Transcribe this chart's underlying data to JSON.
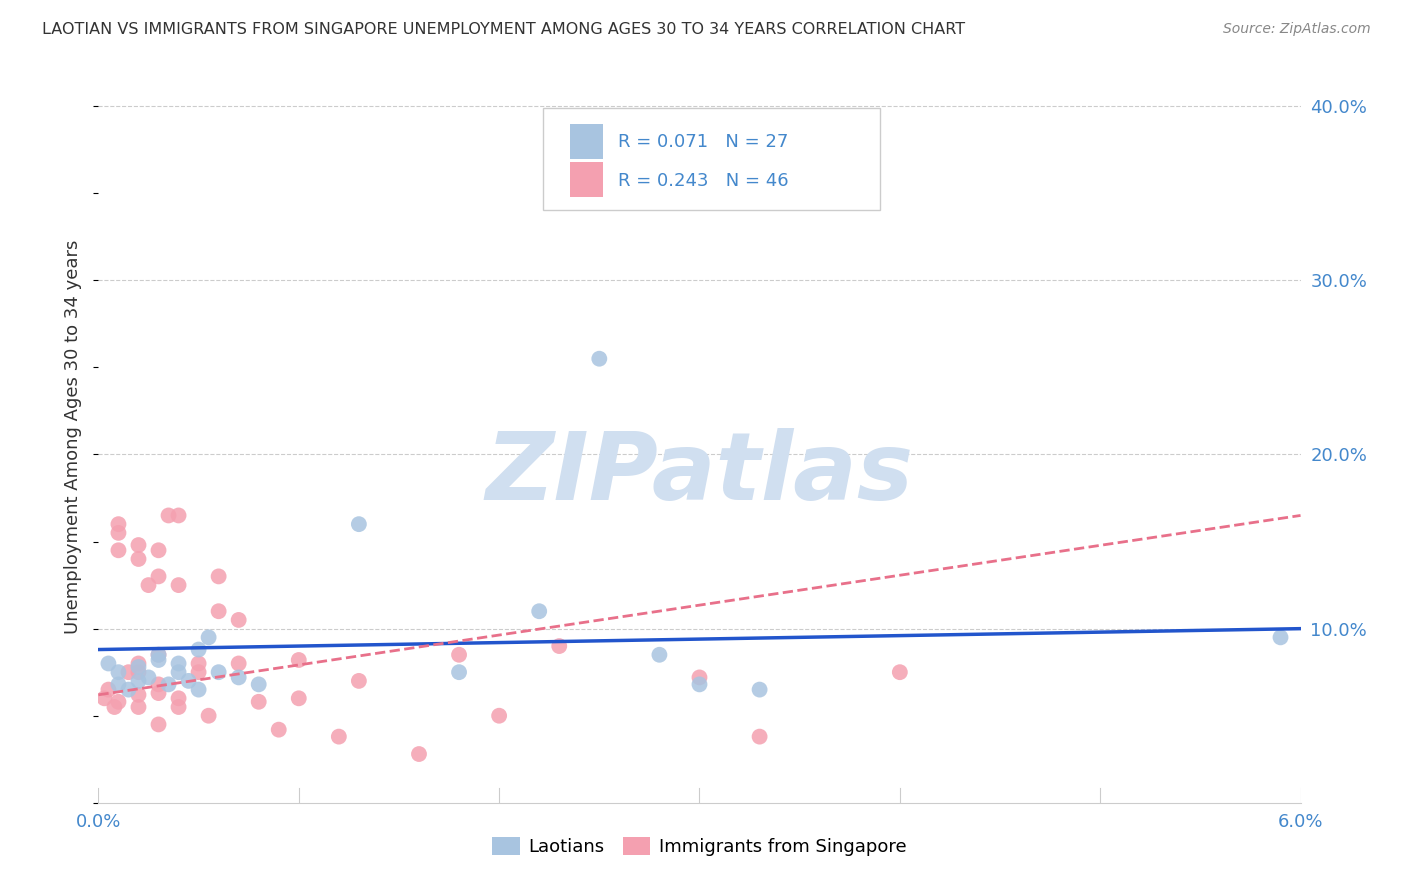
{
  "title": "LAOTIAN VS IMMIGRANTS FROM SINGAPORE UNEMPLOYMENT AMONG AGES 30 TO 34 YEARS CORRELATION CHART",
  "source": "Source: ZipAtlas.com",
  "ylabel": "Unemployment Among Ages 30 to 34 years",
  "xlim": [
    0.0,
    0.06
  ],
  "ylim": [
    0.0,
    0.42
  ],
  "xticks": [
    0.0,
    0.01,
    0.02,
    0.03,
    0.04,
    0.05,
    0.06
  ],
  "xticklabels_show": [
    "0.0%",
    "6.0%"
  ],
  "yticks_right": [
    0.0,
    0.1,
    0.2,
    0.3,
    0.4
  ],
  "ytick_labels_right": [
    "",
    "10.0%",
    "20.0%",
    "30.0%",
    "40.0%"
  ],
  "laotians_color": "#a8c4e0",
  "singapore_color": "#f4a0b0",
  "trendline_laotians_color": "#2255cc",
  "trendline_singapore_color": "#e8708a",
  "background_color": "#ffffff",
  "watermark_text": "ZIPatlas",
  "watermark_color": "#d0dff0",
  "legend_text_color": "#4488cc",
  "legend_line1": "R = 0.071   N = 27",
  "legend_line2": "R = 0.243   N = 46",
  "laotians_x": [
    0.0005,
    0.001,
    0.001,
    0.0015,
    0.002,
    0.002,
    0.0025,
    0.003,
    0.003,
    0.0035,
    0.004,
    0.004,
    0.0045,
    0.005,
    0.005,
    0.0055,
    0.006,
    0.007,
    0.008,
    0.013,
    0.018,
    0.022,
    0.025,
    0.028,
    0.03,
    0.033,
    0.059
  ],
  "laotians_y": [
    0.08,
    0.068,
    0.075,
    0.065,
    0.07,
    0.078,
    0.072,
    0.082,
    0.085,
    0.068,
    0.075,
    0.08,
    0.07,
    0.065,
    0.088,
    0.095,
    0.075,
    0.072,
    0.068,
    0.16,
    0.075,
    0.11,
    0.255,
    0.085,
    0.068,
    0.065,
    0.095
  ],
  "singapore_x": [
    0.0003,
    0.0005,
    0.0008,
    0.001,
    0.001,
    0.001,
    0.001,
    0.0015,
    0.002,
    0.002,
    0.002,
    0.002,
    0.002,
    0.002,
    0.0025,
    0.003,
    0.003,
    0.003,
    0.003,
    0.003,
    0.003,
    0.0035,
    0.004,
    0.004,
    0.004,
    0.004,
    0.005,
    0.005,
    0.0055,
    0.006,
    0.006,
    0.007,
    0.007,
    0.008,
    0.009,
    0.01,
    0.01,
    0.012,
    0.013,
    0.016,
    0.018,
    0.02,
    0.023,
    0.03,
    0.033,
    0.04
  ],
  "singapore_y": [
    0.06,
    0.065,
    0.055,
    0.155,
    0.16,
    0.145,
    0.058,
    0.075,
    0.148,
    0.14,
    0.08,
    0.075,
    0.055,
    0.062,
    0.125,
    0.145,
    0.13,
    0.085,
    0.068,
    0.063,
    0.045,
    0.165,
    0.165,
    0.125,
    0.06,
    0.055,
    0.08,
    0.075,
    0.05,
    0.13,
    0.11,
    0.105,
    0.08,
    0.058,
    0.042,
    0.082,
    0.06,
    0.038,
    0.07,
    0.028,
    0.085,
    0.05,
    0.09,
    0.072,
    0.038,
    0.075
  ],
  "trendline_laotians_x0": 0.0,
  "trendline_laotians_x1": 0.06,
  "trendline_laotians_y0": 0.088,
  "trendline_laotians_y1": 0.1,
  "trendline_singapore_x0": 0.0,
  "trendline_singapore_x1": 0.06,
  "trendline_singapore_y0": 0.062,
  "trendline_singapore_y1": 0.165
}
